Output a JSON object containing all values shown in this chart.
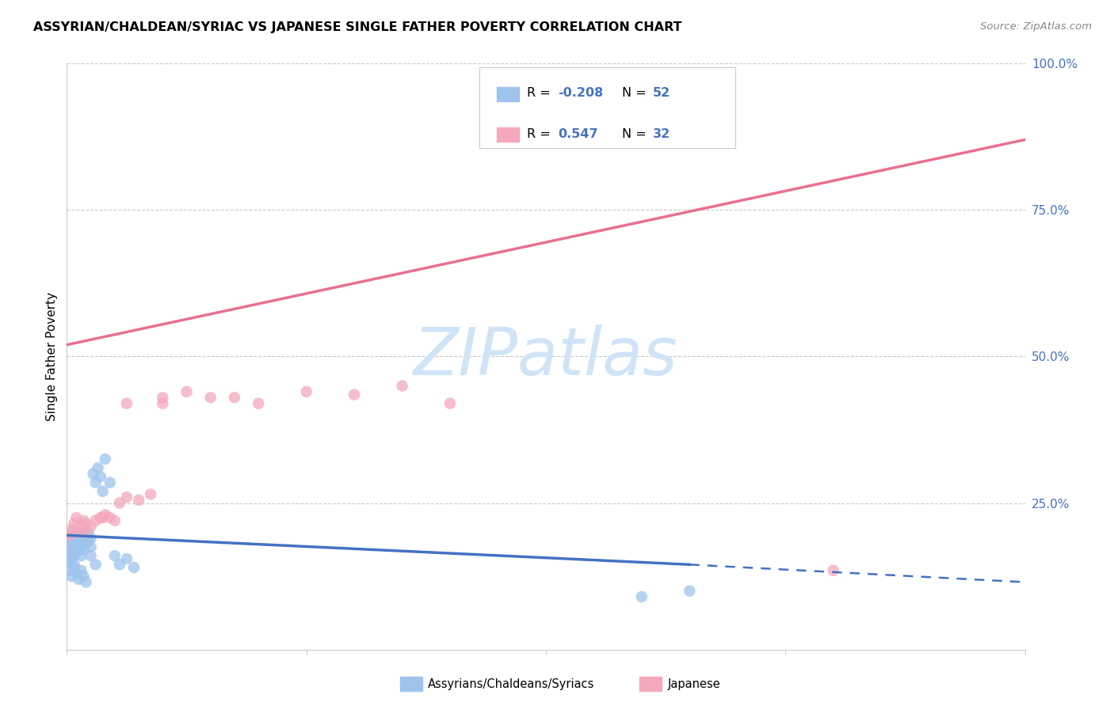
{
  "title": "ASSYRIAN/CHALDEAN/SYRIAC VS JAPANESE SINGLE FATHER POVERTY CORRELATION CHART",
  "source": "Source: ZipAtlas.com",
  "ylabel": "Single Father Poverty",
  "xlim": [
    0.0,
    0.4
  ],
  "ylim": [
    0.0,
    1.0
  ],
  "blue_R": -0.208,
  "blue_N": 52,
  "pink_R": 0.547,
  "pink_N": 32,
  "blue_color": "#9EC4EE",
  "pink_color": "#F4A8BC",
  "blue_line_color": "#4472C4",
  "pink_line_color": "#E87090",
  "watermark": "ZIPatlas",
  "watermark_color": "#D0E4F8",
  "legend_label_blue": "Assyrians/Chaldeans/Syriacs",
  "legend_label_pink": "Japanese",
  "blue_line_x0": 0.0,
  "blue_line_x1_solid": 0.26,
  "blue_line_x1_dashed": 0.4,
  "blue_line_y0": 0.195,
  "blue_line_y1_solid": 0.145,
  "blue_line_y1_dashed": 0.115,
  "pink_line_x0": 0.0,
  "pink_line_x1": 0.4,
  "pink_line_y0": 0.52,
  "pink_line_y1": 0.87,
  "blue_scatter_x": [
    0.001,
    0.001,
    0.001,
    0.001,
    0.002,
    0.002,
    0.002,
    0.002,
    0.003,
    0.003,
    0.003,
    0.003,
    0.004,
    0.004,
    0.004,
    0.005,
    0.005,
    0.005,
    0.006,
    0.006,
    0.006,
    0.007,
    0.007,
    0.008,
    0.008,
    0.009,
    0.009,
    0.01,
    0.01,
    0.011,
    0.012,
    0.013,
    0.014,
    0.015,
    0.016,
    0.018,
    0.02,
    0.022,
    0.025,
    0.028,
    0.001,
    0.002,
    0.003,
    0.004,
    0.005,
    0.006,
    0.007,
    0.008,
    0.01,
    0.012,
    0.24,
    0.26
  ],
  "blue_scatter_y": [
    0.195,
    0.18,
    0.165,
    0.15,
    0.2,
    0.185,
    0.17,
    0.155,
    0.19,
    0.175,
    0.16,
    0.145,
    0.195,
    0.18,
    0.165,
    0.2,
    0.185,
    0.17,
    0.19,
    0.175,
    0.16,
    0.185,
    0.17,
    0.195,
    0.18,
    0.2,
    0.185,
    0.19,
    0.175,
    0.3,
    0.285,
    0.31,
    0.295,
    0.27,
    0.325,
    0.285,
    0.16,
    0.145,
    0.155,
    0.14,
    0.135,
    0.125,
    0.14,
    0.13,
    0.12,
    0.135,
    0.125,
    0.115,
    0.16,
    0.145,
    0.09,
    0.1
  ],
  "pink_scatter_x": [
    0.001,
    0.002,
    0.003,
    0.004,
    0.005,
    0.006,
    0.007,
    0.008,
    0.01,
    0.012,
    0.014,
    0.016,
    0.018,
    0.02,
    0.022,
    0.025,
    0.03,
    0.035,
    0.04,
    0.06,
    0.07,
    0.08,
    0.1,
    0.12,
    0.14,
    0.16,
    0.04,
    0.05,
    0.015,
    0.008,
    0.32,
    0.025
  ],
  "pink_scatter_y": [
    0.195,
    0.205,
    0.215,
    0.225,
    0.2,
    0.21,
    0.22,
    0.215,
    0.21,
    0.22,
    0.225,
    0.23,
    0.225,
    0.22,
    0.25,
    0.26,
    0.255,
    0.265,
    0.42,
    0.43,
    0.43,
    0.42,
    0.44,
    0.435,
    0.45,
    0.42,
    0.43,
    0.44,
    0.225,
    0.2,
    0.135,
    0.42
  ]
}
